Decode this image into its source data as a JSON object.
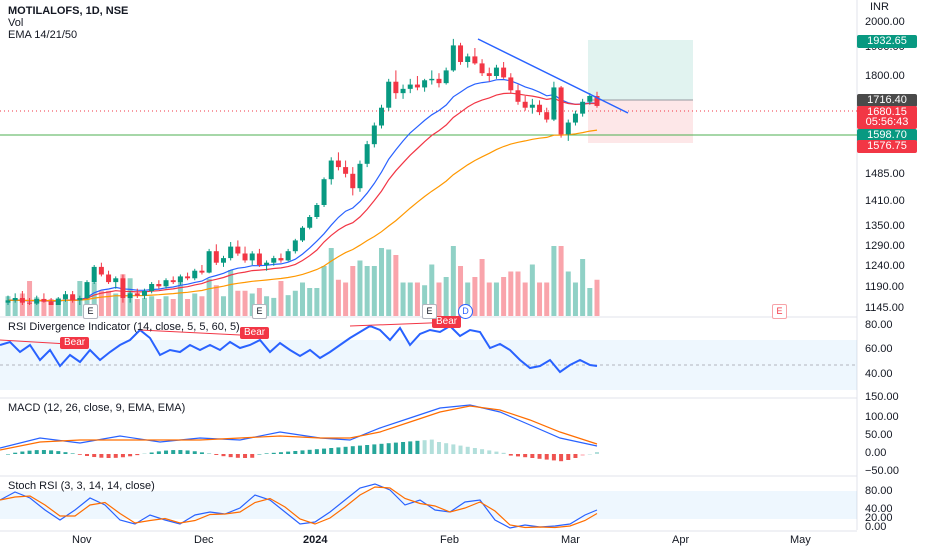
{
  "legend": {
    "symbol": "MOTILALOFS, 1D, NSE",
    "volume": "Vol",
    "ema": "EMA 14/21/50"
  },
  "currency": "INR",
  "price_axis": [
    "2000.00",
    "1900.00",
    "1800.00",
    "1485.00",
    "1410.00",
    "1350.00",
    "1290.00",
    "1240.00",
    "1190.00",
    "1145.00"
  ],
  "price_tags": [
    {
      "label": "1932.65",
      "color": "#089981"
    },
    {
      "label": "1716.40",
      "color": "#4a4a4a"
    },
    {
      "label": "1680.15",
      "color": "#f23645"
    },
    {
      "label": "05:56:43",
      "color": "#f23645"
    },
    {
      "label": "1598.70",
      "color": "#089981"
    },
    {
      "label": "1576.75",
      "color": "#f23645"
    }
  ],
  "panes": {
    "rsi": {
      "title": "RSI Divergence Indicator (14, close, 5, 5, 60, 5)",
      "axis": [
        "80.00",
        "60.00",
        "40.00"
      ],
      "bear_labels": [
        "Bear",
        "Bear",
        "Bear"
      ]
    },
    "macd": {
      "title": "MACD (12, 26, close, 9, EMA, EMA)",
      "axis": [
        "150.00",
        "100.00",
        "50.00",
        "0.00",
        "−50.00"
      ]
    },
    "stoch": {
      "title": "Stoch RSI (3, 3, 14, 14, close)",
      "axis": [
        "80.00",
        "40.00",
        "20.00",
        "0.00"
      ]
    }
  },
  "markers": {
    "earnings": "E",
    "dividend": "D"
  },
  "time_axis": [
    "Nov",
    "Dec",
    "2024",
    "Feb",
    "Mar",
    "Apr",
    "May"
  ],
  "colors": {
    "up": "#089981",
    "down": "#f23645",
    "ema14": "#2962ff",
    "ema21": "#f23645",
    "ema50": "#ff9800",
    "trend": "#2962ff",
    "support": "#4caf50"
  },
  "chart_data": {
    "type": "candlestick",
    "symbol": "MOTILALOFS",
    "interval": "1D",
    "exchange": "NSE",
    "ohlc_approx": [
      [
        1150,
        1165,
        1140,
        1155
      ],
      [
        1155,
        1170,
        1150,
        1160
      ],
      [
        1160,
        1175,
        1145,
        1150
      ],
      [
        1150,
        1160,
        1140,
        1148
      ],
      [
        1148,
        1165,
        1142,
        1158
      ],
      [
        1158,
        1170,
        1150,
        1152
      ],
      [
        1152,
        1160,
        1140,
        1145
      ],
      [
        1145,
        1162,
        1140,
        1158
      ],
      [
        1158,
        1175,
        1152,
        1168
      ],
      [
        1168,
        1175,
        1150,
        1155
      ],
      [
        1155,
        1165,
        1145,
        1160
      ],
      [
        1160,
        1200,
        1158,
        1195
      ],
      [
        1195,
        1240,
        1190,
        1235
      ],
      [
        1235,
        1245,
        1210,
        1215
      ],
      [
        1215,
        1225,
        1190,
        1195
      ],
      [
        1195,
        1210,
        1180,
        1205
      ],
      [
        1205,
        1215,
        1150,
        1160
      ],
      [
        1160,
        1175,
        1150,
        1170
      ],
      [
        1170,
        1180,
        1160,
        1165
      ],
      [
        1165,
        1180,
        1158,
        1175
      ],
      [
        1175,
        1195,
        1170,
        1190
      ],
      [
        1190,
        1200,
        1180,
        1185
      ],
      [
        1185,
        1205,
        1180,
        1200
      ],
      [
        1200,
        1210,
        1190,
        1195
      ],
      [
        1195,
        1215,
        1188,
        1210
      ],
      [
        1210,
        1220,
        1200,
        1205
      ],
      [
        1205,
        1230,
        1200,
        1225
      ],
      [
        1225,
        1240,
        1215,
        1220
      ],
      [
        1220,
        1275,
        1218,
        1270
      ],
      [
        1270,
        1285,
        1240,
        1245
      ],
      [
        1245,
        1260,
        1235,
        1255
      ],
      [
        1255,
        1290,
        1250,
        1280
      ],
      [
        1280,
        1295,
        1260,
        1265
      ],
      [
        1265,
        1280,
        1245,
        1250
      ],
      [
        1250,
        1270,
        1240,
        1265
      ],
      [
        1265,
        1275,
        1235,
        1240
      ],
      [
        1240,
        1250,
        1225,
        1245
      ],
      [
        1245,
        1260,
        1238,
        1255
      ],
      [
        1255,
        1265,
        1245,
        1250
      ],
      [
        1250,
        1275,
        1248,
        1270
      ],
      [
        1270,
        1300,
        1265,
        1295
      ],
      [
        1295,
        1340,
        1290,
        1335
      ],
      [
        1335,
        1370,
        1330,
        1365
      ],
      [
        1365,
        1400,
        1360,
        1395
      ],
      [
        1395,
        1470,
        1390,
        1465
      ],
      [
        1465,
        1530,
        1450,
        1520
      ],
      [
        1520,
        1545,
        1490,
        1500
      ],
      [
        1500,
        1520,
        1470,
        1480
      ],
      [
        1480,
        1500,
        1420,
        1440
      ],
      [
        1440,
        1520,
        1430,
        1510
      ],
      [
        1510,
        1580,
        1500,
        1570
      ],
      [
        1570,
        1640,
        1560,
        1630
      ],
      [
        1630,
        1700,
        1620,
        1690
      ],
      [
        1690,
        1790,
        1680,
        1780
      ],
      [
        1780,
        1820,
        1720,
        1740
      ],
      [
        1740,
        1770,
        1720,
        1755
      ],
      [
        1755,
        1790,
        1740,
        1770
      ],
      [
        1770,
        1800,
        1750,
        1760
      ],
      [
        1760,
        1790,
        1745,
        1785
      ],
      [
        1785,
        1820,
        1770,
        1790
      ],
      [
        1790,
        1810,
        1760,
        1775
      ],
      [
        1775,
        1830,
        1770,
        1820
      ],
      [
        1820,
        1935,
        1815,
        1910
      ],
      [
        1910,
        1920,
        1840,
        1850
      ],
      [
        1850,
        1880,
        1830,
        1870
      ],
      [
        1870,
        1900,
        1840,
        1845
      ],
      [
        1845,
        1860,
        1800,
        1810
      ],
      [
        1810,
        1830,
        1780,
        1800
      ],
      [
        1800,
        1840,
        1790,
        1830
      ],
      [
        1830,
        1850,
        1790,
        1795
      ],
      [
        1795,
        1810,
        1740,
        1750
      ],
      [
        1750,
        1770,
        1700,
        1710
      ],
      [
        1710,
        1730,
        1680,
        1690
      ],
      [
        1690,
        1720,
        1670,
        1700
      ],
      [
        1700,
        1715,
        1665,
        1675
      ],
      [
        1675,
        1690,
        1640,
        1650
      ],
      [
        1650,
        1780,
        1645,
        1760
      ],
      [
        1760,
        1765,
        1590,
        1600
      ],
      [
        1600,
        1650,
        1580,
        1640
      ],
      [
        1640,
        1680,
        1630,
        1670
      ],
      [
        1670,
        1720,
        1660,
        1710
      ],
      [
        1710,
        1740,
        1700,
        1730
      ],
      [
        1730,
        1745,
        1690,
        1696
      ]
    ]
  }
}
